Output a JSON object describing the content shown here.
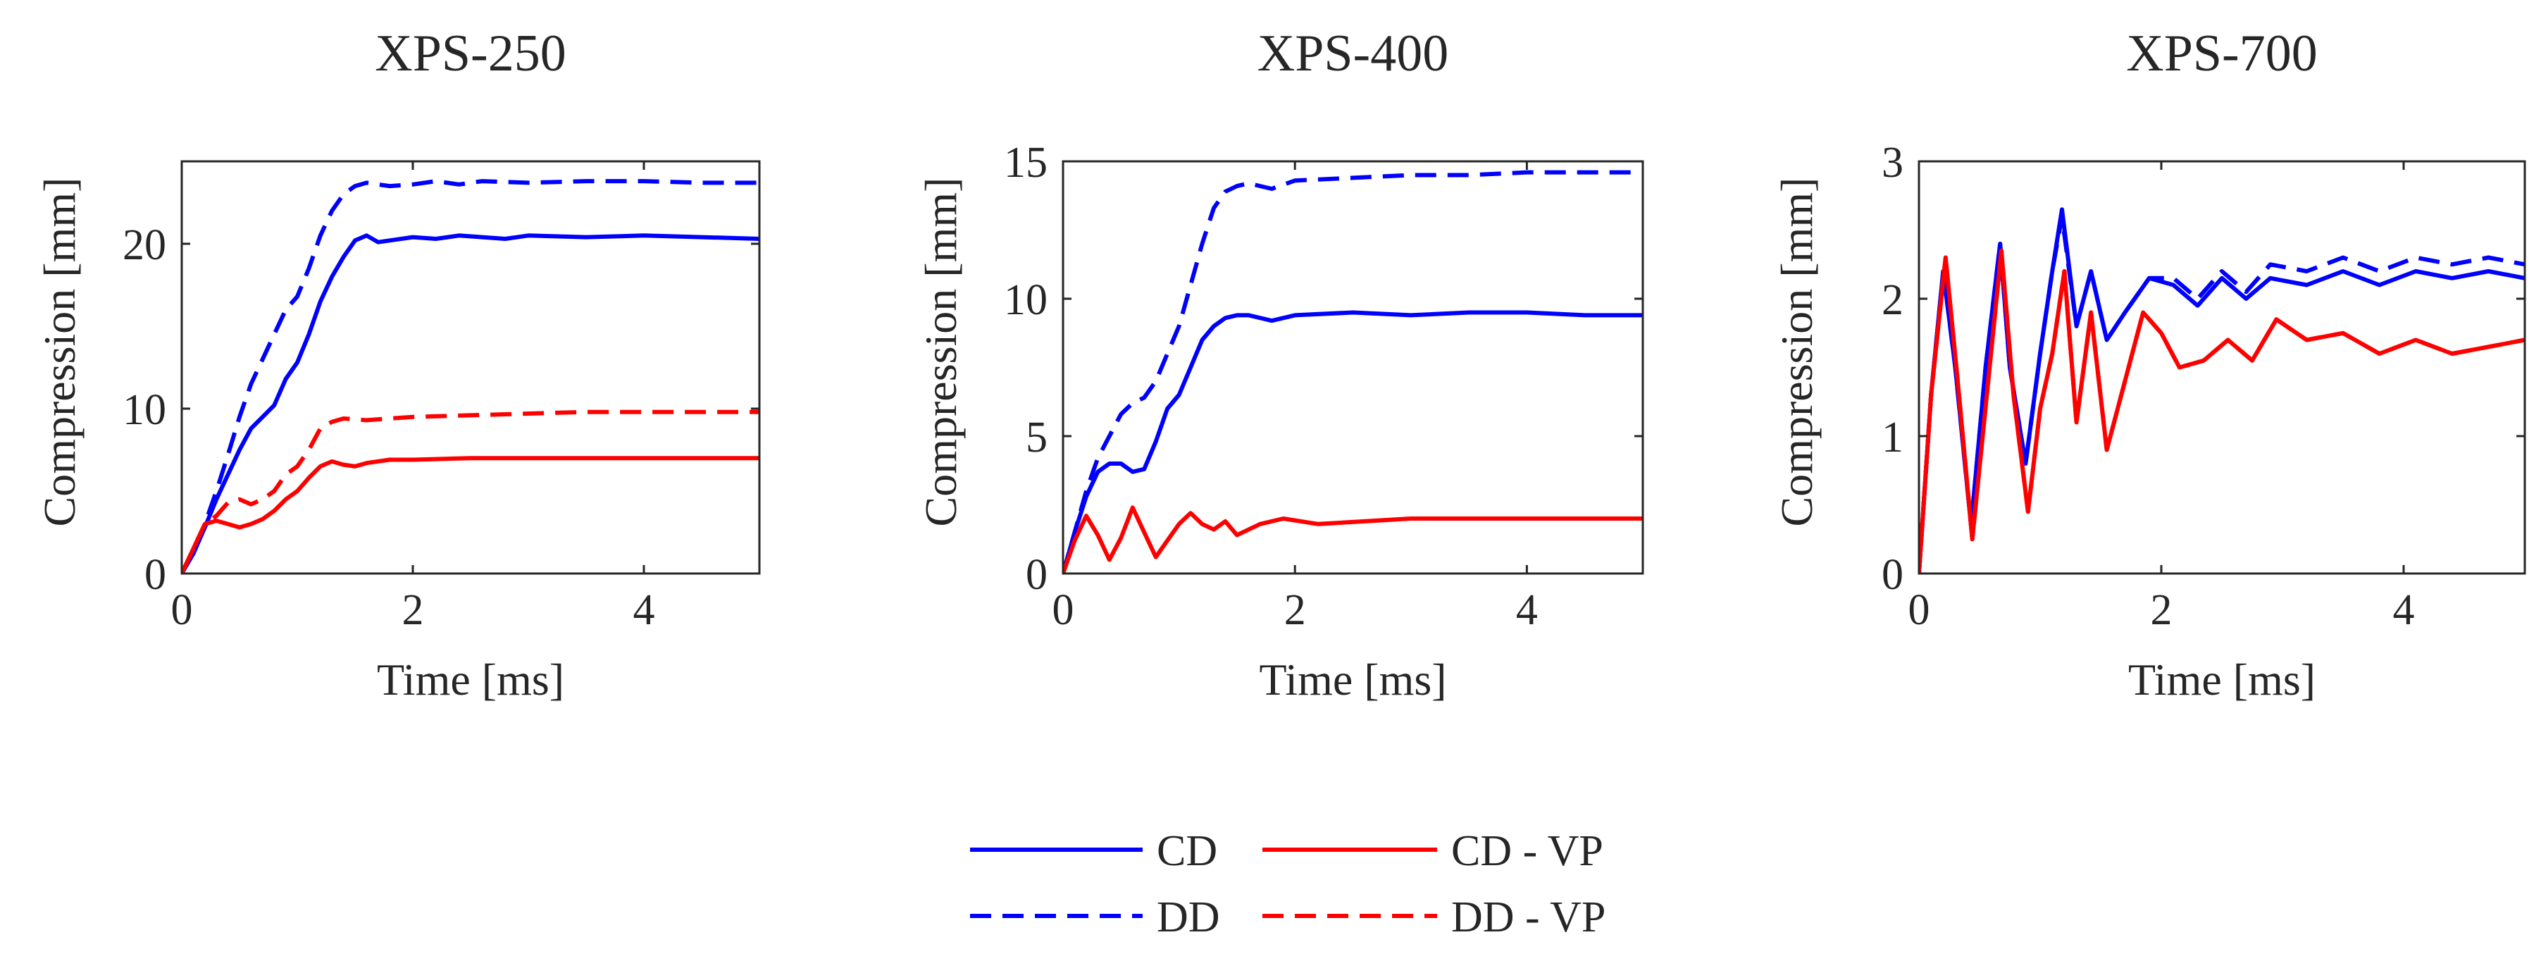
{
  "colors": {
    "cd": "#0000FF",
    "vp": "#FF0000",
    "axis": "#262626",
    "background": "#FFFFFF"
  },
  "legend": {
    "position": "bottom-center",
    "entries": [
      {
        "key": "CD",
        "label": "CD",
        "color": "#0000FF",
        "style": "solid"
      },
      {
        "key": "CD_VP",
        "label": "CD - VP",
        "color": "#FF0000",
        "style": "solid"
      },
      {
        "key": "DD",
        "label": "DD",
        "color": "#0000FF",
        "style": "dashed"
      },
      {
        "key": "DD_VP",
        "label": "DD - VP",
        "color": "#FF0000",
        "style": "dashed"
      }
    ]
  },
  "chart_data": [
    {
      "type": "line",
      "title": "XPS-250",
      "xlabel": "Time [ms]",
      "ylabel": "Compression [mm]",
      "xlim": [
        0,
        5
      ],
      "ylim": [
        0,
        25
      ],
      "xticks": [
        0,
        2,
        4
      ],
      "yticks": [
        0,
        10,
        20
      ],
      "series": [
        {
          "name": "CD",
          "style": "solid",
          "color": "#0000FF",
          "x": [
            0,
            0.1,
            0.2,
            0.3,
            0.4,
            0.5,
            0.6,
            0.7,
            0.8,
            0.9,
            1.0,
            1.1,
            1.2,
            1.3,
            1.4,
            1.5,
            1.6,
            1.7,
            1.8,
            2.0,
            2.2,
            2.4,
            2.6,
            2.8,
            3.0,
            3.5,
            4.0,
            4.5,
            5.0
          ],
          "y": [
            0,
            1.2,
            2.8,
            4.5,
            6.0,
            7.5,
            8.8,
            9.5,
            10.2,
            11.8,
            12.8,
            14.5,
            16.5,
            18.0,
            19.2,
            20.2,
            20.5,
            20.1,
            20.2,
            20.4,
            20.3,
            20.5,
            20.4,
            20.3,
            20.5,
            20.4,
            20.5,
            20.4,
            20.3
          ]
        },
        {
          "name": "DD",
          "style": "dashed",
          "color": "#0000FF",
          "x": [
            0,
            0.1,
            0.2,
            0.3,
            0.4,
            0.5,
            0.6,
            0.7,
            0.8,
            0.9,
            1.0,
            1.1,
            1.2,
            1.3,
            1.4,
            1.5,
            1.6,
            1.7,
            1.8,
            2.0,
            2.2,
            2.4,
            2.6,
            3.0,
            3.5,
            4.0,
            4.5,
            5.0
          ],
          "y": [
            0,
            1.3,
            3.0,
            5.0,
            7.2,
            9.5,
            11.5,
            13.0,
            14.5,
            16.0,
            16.8,
            18.5,
            20.5,
            22.0,
            23.0,
            23.5,
            23.7,
            23.6,
            23.5,
            23.6,
            23.8,
            23.6,
            23.8,
            23.7,
            23.8,
            23.8,
            23.7,
            23.7
          ]
        },
        {
          "name": "CD - VP",
          "style": "solid",
          "color": "#FF0000",
          "x": [
            0,
            0.1,
            0.2,
            0.3,
            0.4,
            0.5,
            0.6,
            0.7,
            0.8,
            0.9,
            1.0,
            1.1,
            1.2,
            1.3,
            1.4,
            1.5,
            1.6,
            1.8,
            2.0,
            2.5,
            3.0,
            3.5,
            4.0,
            4.5,
            5.0
          ],
          "y": [
            0,
            1.5,
            3.0,
            3.2,
            3.0,
            2.8,
            3.0,
            3.3,
            3.8,
            4.5,
            5.0,
            5.8,
            6.5,
            6.8,
            6.6,
            6.5,
            6.7,
            6.9,
            6.9,
            7.0,
            7.0,
            7.0,
            7.0,
            7.0,
            7.0
          ]
        },
        {
          "name": "DD - VP",
          "style": "dashed",
          "color": "#FF0000",
          "x": [
            0,
            0.1,
            0.2,
            0.3,
            0.4,
            0.5,
            0.6,
            0.7,
            0.8,
            0.9,
            1.0,
            1.1,
            1.2,
            1.3,
            1.4,
            1.6,
            1.8,
            2.0,
            2.5,
            3.0,
            3.5,
            4.0,
            4.5,
            5.0
          ],
          "y": [
            0,
            1.5,
            3.0,
            3.5,
            4.3,
            4.5,
            4.2,
            4.5,
            5.0,
            6.0,
            6.5,
            7.5,
            8.8,
            9.2,
            9.4,
            9.3,
            9.4,
            9.5,
            9.6,
            9.7,
            9.8,
            9.8,
            9.8,
            9.8
          ]
        }
      ]
    },
    {
      "type": "line",
      "title": "XPS-400",
      "xlabel": "Time [ms]",
      "ylabel": "Compression [mm]",
      "xlim": [
        0,
        5
      ],
      "ylim": [
        0,
        15
      ],
      "xticks": [
        0,
        2,
        4
      ],
      "yticks": [
        0,
        5,
        10,
        15
      ],
      "series": [
        {
          "name": "CD",
          "style": "solid",
          "color": "#0000FF",
          "x": [
            0,
            0.1,
            0.2,
            0.3,
            0.4,
            0.5,
            0.6,
            0.7,
            0.8,
            0.9,
            1.0,
            1.1,
            1.2,
            1.3,
            1.4,
            1.5,
            1.6,
            1.8,
            2.0,
            2.5,
            3.0,
            3.5,
            4.0,
            4.5,
            5.0
          ],
          "y": [
            0,
            1.5,
            2.8,
            3.7,
            4.0,
            4.0,
            3.7,
            3.8,
            4.8,
            6.0,
            6.5,
            7.5,
            8.5,
            9.0,
            9.3,
            9.4,
            9.4,
            9.2,
            9.4,
            9.5,
            9.4,
            9.5,
            9.5,
            9.4,
            9.4
          ]
        },
        {
          "name": "DD",
          "style": "dashed",
          "color": "#0000FF",
          "x": [
            0,
            0.1,
            0.2,
            0.3,
            0.4,
            0.5,
            0.6,
            0.7,
            0.8,
            0.9,
            1.0,
            1.1,
            1.2,
            1.3,
            1.4,
            1.5,
            1.6,
            1.8,
            2.0,
            2.5,
            3.0,
            3.5,
            4.0,
            4.5,
            5.0
          ],
          "y": [
            0,
            1.5,
            3.0,
            4.2,
            5.0,
            5.8,
            6.2,
            6.4,
            7.0,
            8.0,
            9.0,
            10.5,
            12.0,
            13.3,
            13.9,
            14.1,
            14.2,
            14.0,
            14.3,
            14.4,
            14.5,
            14.5,
            14.6,
            14.6,
            14.6
          ]
        },
        {
          "name": "CD - VP",
          "style": "solid",
          "color": "#FF0000",
          "x": [
            0,
            0.1,
            0.2,
            0.3,
            0.4,
            0.5,
            0.6,
            0.7,
            0.8,
            0.9,
            1.0,
            1.1,
            1.2,
            1.3,
            1.4,
            1.5,
            1.7,
            1.9,
            2.2,
            2.6,
            3.0,
            3.5,
            4.0,
            4.5,
            5.0
          ],
          "y": [
            0,
            1.2,
            2.1,
            1.4,
            0.5,
            1.3,
            2.4,
            1.5,
            0.6,
            1.2,
            1.8,
            2.2,
            1.8,
            1.6,
            1.9,
            1.4,
            1.8,
            2.0,
            1.8,
            1.9,
            2.0,
            2.0,
            2.0,
            2.0,
            2.0
          ]
        }
      ]
    },
    {
      "type": "line",
      "title": "XPS-700",
      "xlabel": "Time [ms]",
      "ylabel": "Compression [mm]",
      "xlim": [
        0,
        5
      ],
      "ylim": [
        0,
        3
      ],
      "xticks": [
        0,
        2,
        4
      ],
      "yticks": [
        0,
        1,
        2,
        3
      ],
      "series": [
        {
          "name": "CD",
          "style": "solid",
          "color": "#0000FF",
          "x": [
            0,
            0.1,
            0.2,
            0.3,
            0.43,
            0.55,
            0.67,
            0.75,
            0.88,
            1.0,
            1.1,
            1.18,
            1.3,
            1.42,
            1.55,
            1.7,
            1.9,
            2.1,
            2.3,
            2.5,
            2.7,
            2.9,
            3.2,
            3.5,
            3.8,
            4.1,
            4.4,
            4.7,
            5.0
          ],
          "y": [
            0,
            1.3,
            2.2,
            1.5,
            0.35,
            1.5,
            2.4,
            1.5,
            0.8,
            1.6,
            2.2,
            2.65,
            1.8,
            2.2,
            1.7,
            1.9,
            2.15,
            2.1,
            1.95,
            2.15,
            2.0,
            2.15,
            2.1,
            2.2,
            2.1,
            2.2,
            2.15,
            2.2,
            2.15
          ]
        },
        {
          "name": "DD",
          "style": "dashed",
          "color": "#0000FF",
          "x": [
            0,
            0.1,
            0.2,
            0.3,
            0.43,
            0.55,
            0.67,
            0.75,
            0.88,
            1.0,
            1.1,
            1.18,
            1.3,
            1.42,
            1.55,
            1.7,
            1.9,
            2.1,
            2.3,
            2.5,
            2.7,
            2.9,
            3.2,
            3.5,
            3.8,
            4.1,
            4.4,
            4.7,
            5.0
          ],
          "y": [
            0,
            1.3,
            2.2,
            1.5,
            0.35,
            1.5,
            2.4,
            1.5,
            0.8,
            1.6,
            2.2,
            2.6,
            1.8,
            2.2,
            1.7,
            1.9,
            2.15,
            2.15,
            2.0,
            2.2,
            2.05,
            2.25,
            2.2,
            2.3,
            2.2,
            2.3,
            2.25,
            2.3,
            2.25
          ]
        },
        {
          "name": "CD - VP",
          "style": "solid",
          "color": "#FF0000",
          "x": [
            0,
            0.1,
            0.22,
            0.32,
            0.44,
            0.56,
            0.68,
            0.78,
            0.9,
            1.0,
            1.1,
            1.2,
            1.3,
            1.42,
            1.55,
            1.7,
            1.85,
            2.0,
            2.15,
            2.35,
            2.55,
            2.75,
            2.95,
            3.2,
            3.5,
            3.8,
            4.1,
            4.4,
            4.7,
            5.0
          ],
          "y": [
            0,
            1.3,
            2.3,
            1.4,
            0.25,
            1.3,
            2.35,
            1.3,
            0.45,
            1.2,
            1.6,
            2.2,
            1.1,
            1.9,
            0.9,
            1.4,
            1.9,
            1.75,
            1.5,
            1.55,
            1.7,
            1.55,
            1.85,
            1.7,
            1.75,
            1.6,
            1.7,
            1.6,
            1.65,
            1.7
          ]
        },
        {
          "name": "DD - VP",
          "style": "dashed",
          "color": "#FF0000",
          "x": [
            0,
            0.1,
            0.22,
            0.32,
            0.44,
            0.56,
            0.68,
            0.78,
            0.9,
            1.0,
            1.1,
            1.2,
            1.3,
            1.42,
            1.55,
            1.7,
            1.85,
            2.0,
            2.15,
            2.35,
            2.55,
            2.75,
            2.95,
            3.2,
            3.5,
            3.8,
            4.1,
            4.4,
            4.7,
            5.0
          ],
          "y": [
            0,
            1.3,
            2.3,
            1.4,
            0.25,
            1.3,
            2.35,
            1.3,
            0.45,
            1.2,
            1.6,
            2.2,
            1.1,
            1.9,
            0.9,
            1.4,
            1.9,
            1.75,
            1.5,
            1.55,
            1.7,
            1.55,
            1.85,
            1.7,
            1.75,
            1.6,
            1.7,
            1.6,
            1.65,
            1.7
          ]
        }
      ]
    }
  ]
}
